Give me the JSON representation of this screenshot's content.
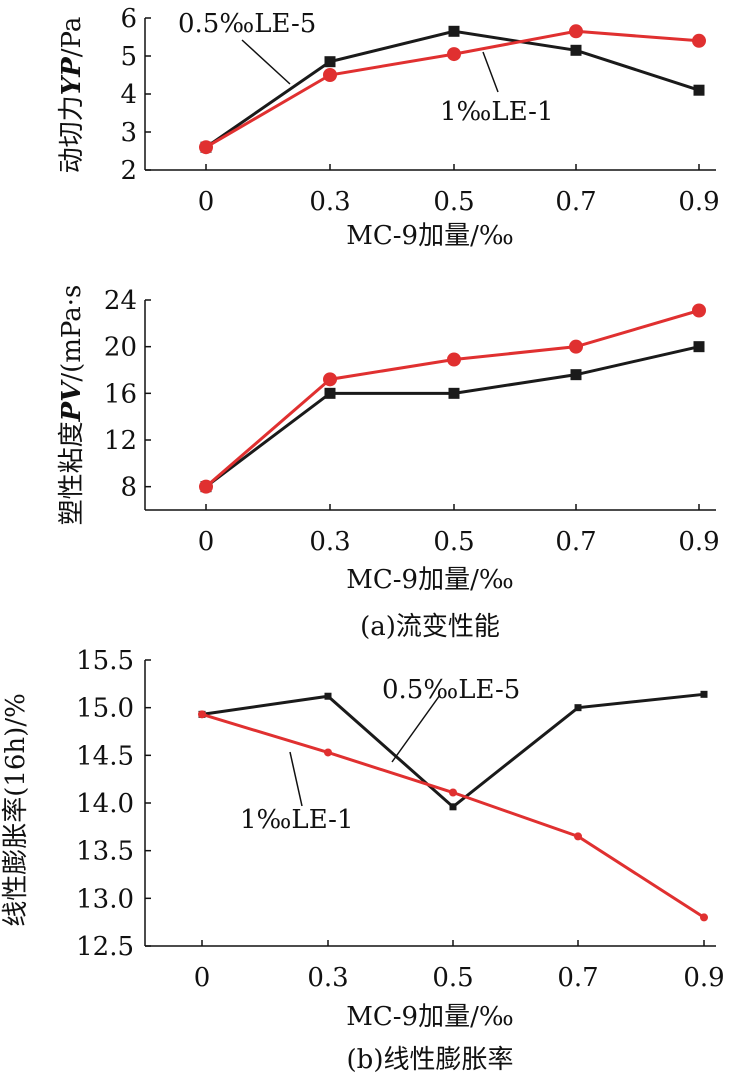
{
  "captions": {
    "a": "(a)流变性能",
    "b": "(b)线性膨胀率"
  },
  "colors": {
    "black_series": "#1a1a1a",
    "red_series": "#e03030"
  },
  "chart_data": [
    {
      "type": "line",
      "id": "yp",
      "xlabel": "MC-9加量/‰",
      "ylabel_parts": [
        "动切力",
        "YP",
        "/Pa"
      ],
      "x": [
        0,
        0.3,
        0.5,
        0.7,
        0.9
      ],
      "x_tick_labels": [
        "0",
        "0.3",
        "0.5",
        "0.7",
        "0.9"
      ],
      "ylim": [
        2,
        6
      ],
      "y_ticks": [
        2,
        3,
        4,
        5,
        6
      ],
      "y_tick_labels": [
        "2",
        "3",
        "4",
        "5",
        "6"
      ],
      "series": [
        {
          "name": "0.5‰LE-5",
          "color": "#1a1a1a",
          "marker": "square",
          "values": [
            2.6,
            4.85,
            5.65,
            5.15,
            4.1
          ]
        },
        {
          "name": "1‰LE-1",
          "color": "#e03030",
          "marker": "circle",
          "values": [
            2.6,
            4.5,
            5.05,
            5.65,
            5.4
          ]
        }
      ]
    },
    {
      "type": "line",
      "id": "pv",
      "xlabel": "MC-9加量/‰",
      "ylabel_parts": [
        "塑性粘度",
        "PV",
        "/(mPa·s"
      ],
      "x": [
        0,
        0.3,
        0.5,
        0.7,
        0.9
      ],
      "x_tick_labels": [
        "0",
        "0.3",
        "0.5",
        "0.7",
        "0.9"
      ],
      "ylim": [
        6,
        24
      ],
      "y_ticks": [
        8,
        12,
        16,
        20,
        24
      ],
      "y_tick_labels": [
        "8",
        "12",
        "16",
        "20",
        "24"
      ],
      "series": [
        {
          "name": "0.5‰LE-5",
          "color": "#1a1a1a",
          "marker": "square",
          "values": [
            8,
            16,
            16,
            17.6,
            20
          ]
        },
        {
          "name": "1‰LE-1",
          "color": "#e03030",
          "marker": "circle",
          "values": [
            8,
            17.2,
            18.9,
            20,
            23.1
          ]
        }
      ]
    },
    {
      "type": "line",
      "id": "swell",
      "xlabel": "MC-9加量/‰",
      "ylabel_parts": [
        "线性膨胀率(16h)/%"
      ],
      "x": [
        0,
        0.3,
        0.5,
        0.7,
        0.9
      ],
      "x_tick_labels": [
        "0",
        "0.3",
        "0.5",
        "0.7",
        "0.9"
      ],
      "ylim": [
        12.5,
        15.5
      ],
      "y_ticks": [
        12.5,
        13.0,
        13.5,
        14.0,
        14.5,
        15.0,
        15.5
      ],
      "y_tick_labels": [
        "12.5",
        "13.0",
        "13.5",
        "14.0",
        "14.5",
        "15.0",
        "15.5"
      ],
      "series": [
        {
          "name": "0.5‰LE-5",
          "color": "#1a1a1a",
          "marker": "smallsquare",
          "values": [
            14.93,
            15.12,
            13.96,
            15.0,
            15.14
          ]
        },
        {
          "name": "1‰LE-1",
          "color": "#e03030",
          "marker": "smallcircle",
          "values": [
            14.93,
            14.53,
            14.11,
            13.65,
            12.8
          ]
        }
      ]
    }
  ]
}
